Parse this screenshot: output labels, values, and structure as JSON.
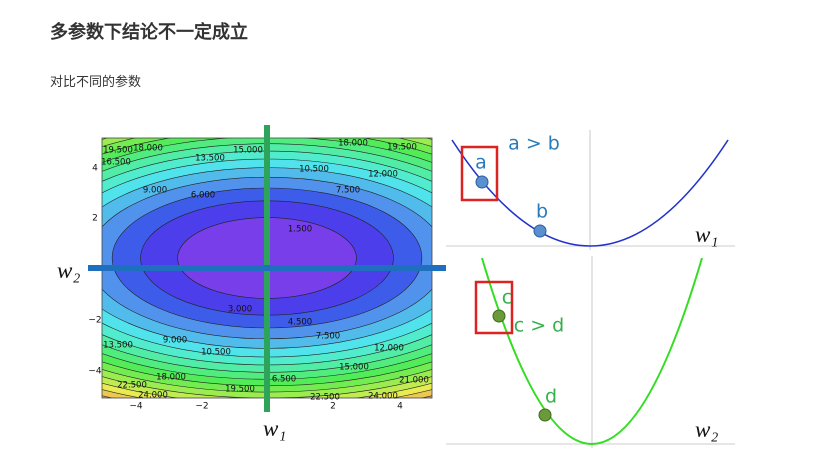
{
  "header": {
    "title": "多参数下结论不一定成立",
    "subtitle": "对比不同的参数"
  },
  "contour": {
    "level_labels": [
      "19.500",
      "18.000",
      "16.500",
      "15.000",
      "13.500",
      "18.000",
      "19.500",
      "10.500",
      "12.000",
      "9.000",
      "7.500",
      "6.000",
      "1.500",
      "3.000",
      "4.500",
      "7.500",
      "9.000",
      "10.500",
      "12.000",
      "13.500",
      "15.000",
      "18.000",
      "6.500",
      "21.000",
      "22.500",
      "19.500",
      "22.500",
      "24.000",
      "24.000"
    ],
    "yticks": [
      "4",
      "2",
      "−2",
      "−4"
    ],
    "xticks": [
      "−4",
      "−2",
      "2",
      "4"
    ],
    "w1_label": "w₁",
    "w2_label": "w₂"
  },
  "top_plot": {
    "compare": "a > b",
    "point_a": "a",
    "point_b": "b",
    "axis": "w₁"
  },
  "bottom_plot": {
    "compare": "c > d",
    "point_c": "c",
    "point_d": "d",
    "axis": "w₂"
  }
}
